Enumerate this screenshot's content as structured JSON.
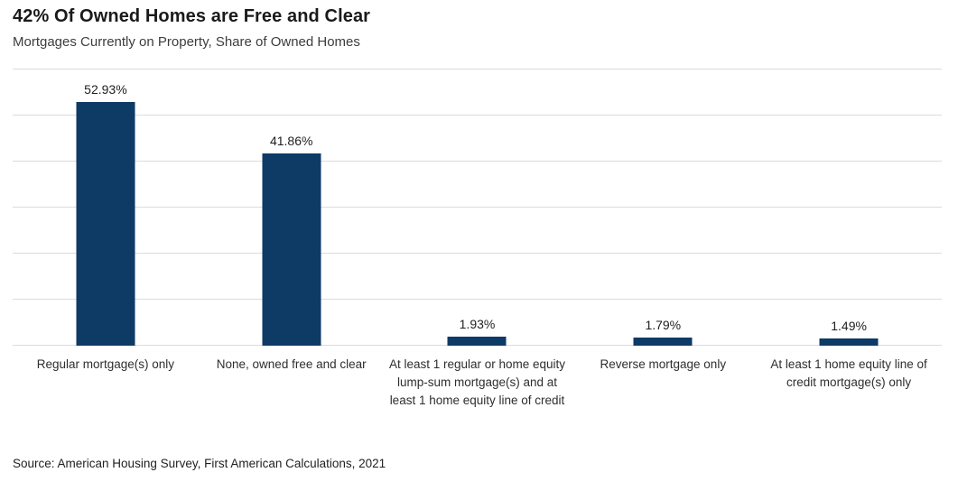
{
  "chart_data": {
    "type": "bar",
    "title": "42% Of Owned Homes are Free and Clear",
    "subtitle": "Mortgages Currently on Property, Share of Owned Homes",
    "categories": [
      "Regular mortgage(s) only",
      "None, owned free and clear",
      "At least 1 regular or home equity lump-sum mortgage(s) and at least 1 home equity line of credit",
      "Reverse mortgage only",
      "At least 1 home equity line of credit mortgage(s) only"
    ],
    "values": [
      52.93,
      41.86,
      1.93,
      1.79,
      1.49
    ],
    "value_labels": [
      "52.93%",
      "41.86%",
      "1.93%",
      "1.79%",
      "1.49%"
    ],
    "xlabel": "",
    "ylabel": "",
    "ylim": [
      0,
      60
    ],
    "gridline_step": 10,
    "grid": true,
    "legend": false,
    "bar_color": "#0e3a66",
    "gridline_color": "#dcdcdc",
    "source": "Source: American Housing Survey, First American Calculations, 2021"
  }
}
